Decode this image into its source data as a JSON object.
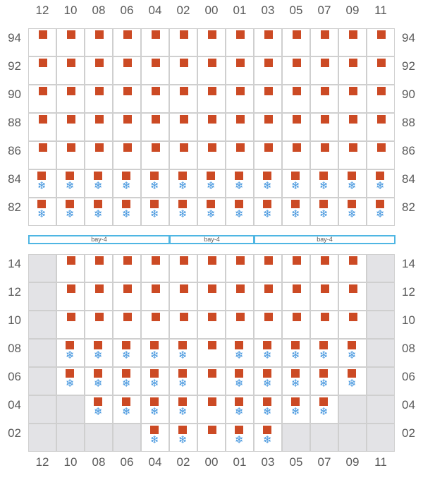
{
  "columns": [
    "12",
    "10",
    "08",
    "06",
    "04",
    "02",
    "00",
    "01",
    "03",
    "05",
    "07",
    "09",
    "11"
  ],
  "bay_labels": [
    "bay-4",
    "bay-4",
    "bay-4"
  ],
  "upper_tiers": [
    "94",
    "92",
    "90",
    "88",
    "86",
    "84",
    "82"
  ],
  "lower_tiers": [
    "14",
    "12",
    "10",
    "08",
    "06",
    "04",
    "02"
  ],
  "legend_icons": {
    "container": "container-square-icon",
    "reefer": "snowflake-icon"
  },
  "colors": {
    "container": "#cc4a24",
    "reefer": "#3f93dd",
    "unavailable": "#e3e3e6",
    "bay_band": "#4fb6e3"
  },
  "upper_deck": [
    "CCCCCCCCCCCCC",
    "CCCCCCCCCCCCC",
    "CCCCCCCCCCCCC",
    "CCCCCCCCCCCCC",
    "CCCCCCCCCCCCC",
    "RRRRRRRRRRRRR",
    "RRRRRRRRRRRRR"
  ],
  "lower_hold": [
    "XCCCCCCCCCCCX",
    "XCCCCCCCCCCCX",
    "XCCCCCCCCCCCX",
    "XRRRRRCRRRRRX",
    "XRRRRRCRRRRRX",
    "XXRRRRCRRRRXX",
    "XXXXRRCRRXXXX"
  ]
}
